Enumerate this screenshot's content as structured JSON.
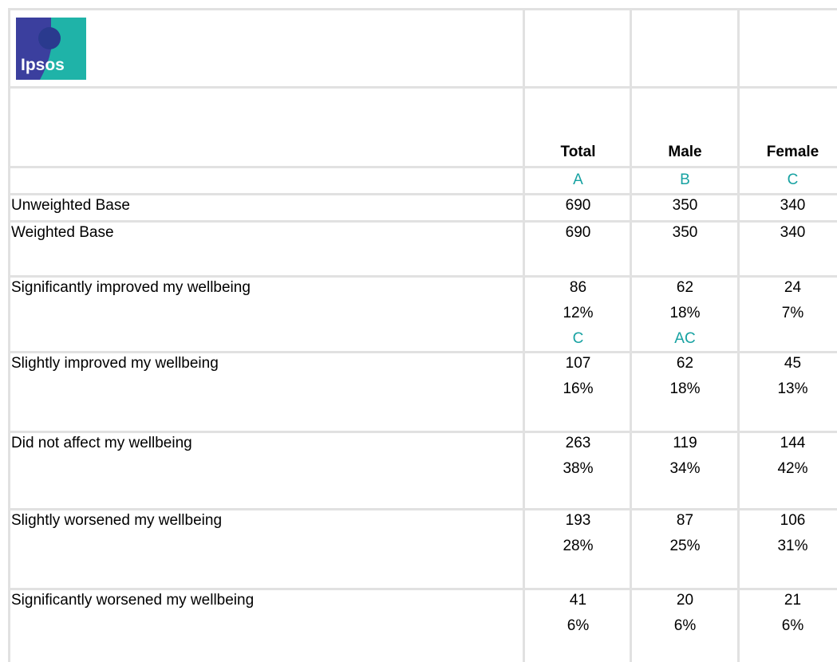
{
  "logo": {
    "text": "Ipsos"
  },
  "header": {
    "columns": [
      "Total",
      "Male",
      "Female"
    ],
    "letters": [
      "A",
      "B",
      "C"
    ]
  },
  "table": {
    "rows": [
      {
        "label": "Unweighted Base",
        "cells": [
          {
            "count": 690
          },
          {
            "count": 350
          },
          {
            "count": 340
          }
        ]
      },
      {
        "label": "Weighted Base",
        "cells": [
          {
            "count": 690
          },
          {
            "count": 350
          },
          {
            "count": 340
          }
        ]
      },
      {
        "label": "Significantly improved my wellbeing",
        "cells": [
          {
            "count": 86,
            "pct": "12%",
            "sig": "C"
          },
          {
            "count": 62,
            "pct": "18%",
            "sig": "AC"
          },
          {
            "count": 24,
            "pct": "7%"
          }
        ]
      },
      {
        "label": "Slightly improved my wellbeing",
        "cells": [
          {
            "count": 107,
            "pct": "16%"
          },
          {
            "count": 62,
            "pct": "18%"
          },
          {
            "count": 45,
            "pct": "13%"
          }
        ]
      },
      {
        "label": "Did not affect my wellbeing",
        "cells": [
          {
            "count": 263,
            "pct": "38%"
          },
          {
            "count": 119,
            "pct": "34%"
          },
          {
            "count": 144,
            "pct": "42%"
          }
        ]
      },
      {
        "label": "Slightly worsened my wellbeing",
        "cells": [
          {
            "count": 193,
            "pct": "28%"
          },
          {
            "count": 87,
            "pct": "25%"
          },
          {
            "count": 106,
            "pct": "31%"
          }
        ]
      },
      {
        "label": "Significantly worsened my wellbeing",
        "cells": [
          {
            "count": 41,
            "pct": "6%"
          },
          {
            "count": 20,
            "pct": "6%"
          },
          {
            "count": 21,
            "pct": "6%"
          }
        ]
      }
    ]
  }
}
